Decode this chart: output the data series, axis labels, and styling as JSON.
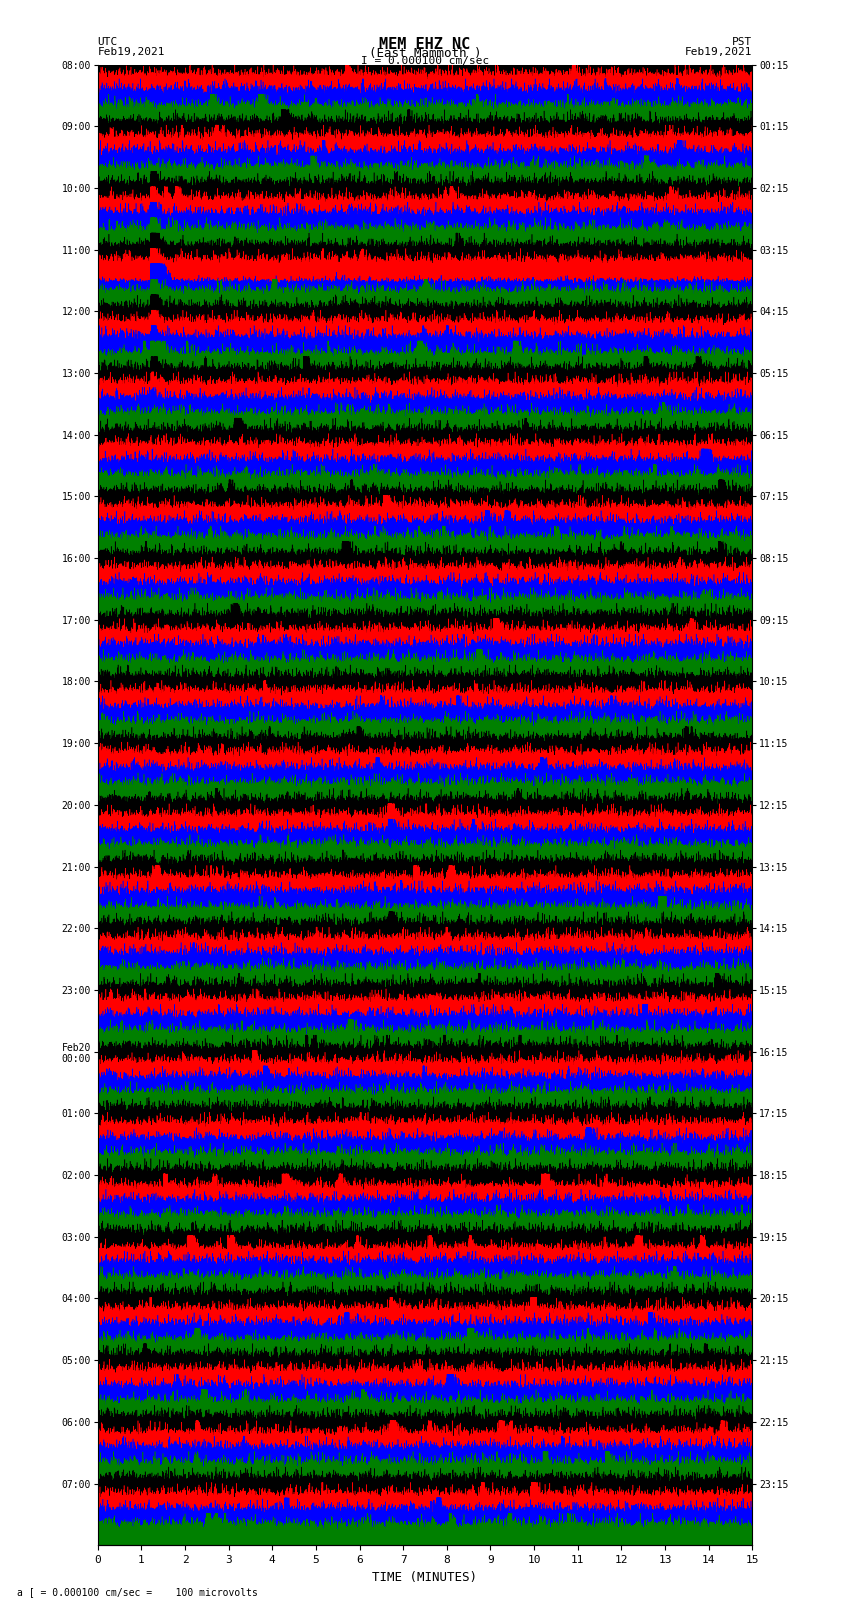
{
  "title_line1": "MEM EHZ NC",
  "title_line2": "(East Mammoth )",
  "scale_label": "I = 0.000100 cm/sec",
  "bottom_label": "a [ = 0.000100 cm/sec =    100 microvolts",
  "xlabel": "TIME (MINUTES)",
  "left_label_utc": "UTC",
  "left_date": "Feb19,2021",
  "right_label_pst": "PST",
  "right_date": "Feb19,2021",
  "left_times": [
    "08:00",
    "09:00",
    "10:00",
    "11:00",
    "12:00",
    "13:00",
    "14:00",
    "15:00",
    "16:00",
    "17:00",
    "18:00",
    "19:00",
    "20:00",
    "21:00",
    "22:00",
    "23:00",
    "Feb20\n00:00",
    "01:00",
    "02:00",
    "03:00",
    "04:00",
    "05:00",
    "06:00",
    "07:00"
  ],
  "right_times": [
    "00:15",
    "01:15",
    "02:15",
    "03:15",
    "04:15",
    "05:15",
    "06:15",
    "07:15",
    "08:15",
    "09:15",
    "10:15",
    "11:15",
    "12:15",
    "13:15",
    "14:15",
    "15:15",
    "16:15",
    "17:15",
    "18:15",
    "19:15",
    "20:15",
    "21:15",
    "22:15",
    "23:15"
  ],
  "n_rows": 24,
  "traces_per_row": 4,
  "n_minutes": 15,
  "sample_rate": 100,
  "colors": [
    "black",
    "red",
    "blue",
    "green"
  ],
  "fig_width": 8.5,
  "fig_height": 16.13,
  "dpi": 100,
  "bg_color": "white",
  "grid_color": "#888888",
  "linewidth": 0.4
}
